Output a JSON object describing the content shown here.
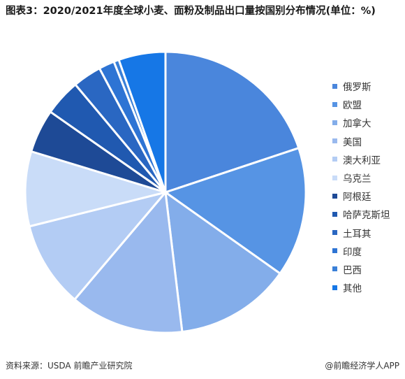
{
  "title": "图表3：2020/2021年度全球小麦、面粉及制品出口量按国别分布情况(单位：%)",
  "footer": {
    "source": "资料来源：USDA 前瞻产业研究院",
    "brand": "@前瞻经济学人APP"
  },
  "chart_data": {
    "type": "pie",
    "title": "图表3：2020/2021年度全球小麦、面粉及制品出口量按国别分布情况(单位：%)",
    "unit": "%",
    "legend_position": "right",
    "categories": [
      "俄罗斯",
      "欧盟",
      "加拿大",
      "美国",
      "澳大利亚",
      "乌克兰",
      "阿根廷",
      "哈萨克斯坦",
      "土耳其",
      "印度",
      "巴西",
      "其他"
    ],
    "values": [
      19.9,
      14.9,
      13.3,
      13.1,
      9.9,
      8.6,
      5.0,
      4.2,
      3.3,
      1.8,
      0.6,
      5.4
    ],
    "colors": [
      "#4a86dc",
      "#5694e4",
      "#83adea",
      "#99b9ee",
      "#b3ccf4",
      "#c9dcf8",
      "#1e4a96",
      "#2059b0",
      "#2a67c2",
      "#2e74d4",
      "#3a80d8",
      "#1677e6"
    ]
  }
}
